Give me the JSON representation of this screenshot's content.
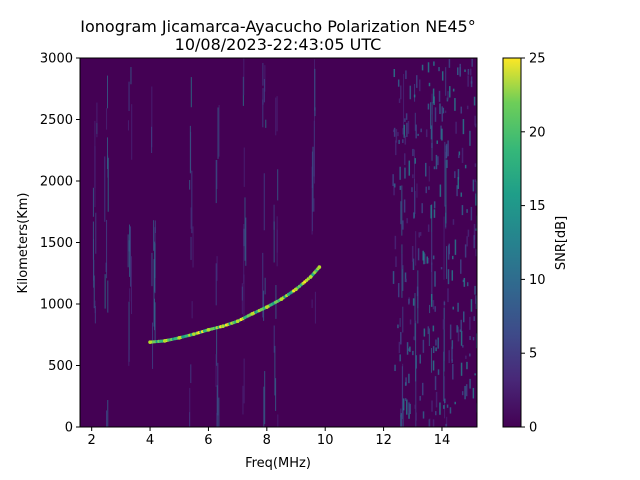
{
  "chart_data": {
    "type": "heatmap",
    "title_line1": "Ionogram Jicamarca-Ayacucho Polarization NE45°",
    "title_line2": "10/08/2023-22:43:05 UTC",
    "xlabel": "Freq(MHz)",
    "ylabel": "Kilometers(Km)",
    "colorbar_label": "SNR[dB]",
    "colormap": "viridis",
    "xlim": [
      1.6,
      15.2
    ],
    "ylim": [
      0,
      3000
    ],
    "clim": [
      0,
      25
    ],
    "x_ticks": [
      2,
      4,
      6,
      8,
      10,
      12,
      14
    ],
    "y_ticks": [
      0,
      500,
      1000,
      1500,
      2000,
      2500,
      3000
    ],
    "colorbar_ticks": [
      0,
      5,
      10,
      15,
      20,
      25
    ],
    "background_snr": 1,
    "noise_band_mhz": [
      12.3,
      15.2
    ],
    "quiet_band_mhz": [
      10.9,
      11.7
    ],
    "echo_trace": {
      "name": "",
      "points": [
        {
          "x": 4.0,
          "y": 690
        },
        {
          "x": 4.5,
          "y": 700
        },
        {
          "x": 5.0,
          "y": 725
        },
        {
          "x": 5.5,
          "y": 755
        },
        {
          "x": 6.0,
          "y": 790
        },
        {
          "x": 6.5,
          "y": 820
        },
        {
          "x": 7.0,
          "y": 860
        },
        {
          "x": 7.5,
          "y": 920
        },
        {
          "x": 8.0,
          "y": 975
        },
        {
          "x": 8.5,
          "y": 1040
        },
        {
          "x": 9.0,
          "y": 1120
        },
        {
          "x": 9.5,
          "y": 1220
        },
        {
          "x": 9.8,
          "y": 1300
        }
      ]
    },
    "vertical_streaks_mhz": [
      2.1,
      2.5,
      3.3,
      4.1,
      5.4,
      6.3,
      7.2,
      7.9,
      8.3,
      9.6,
      12.6,
      13.1,
      13.6,
      14.1
    ]
  }
}
